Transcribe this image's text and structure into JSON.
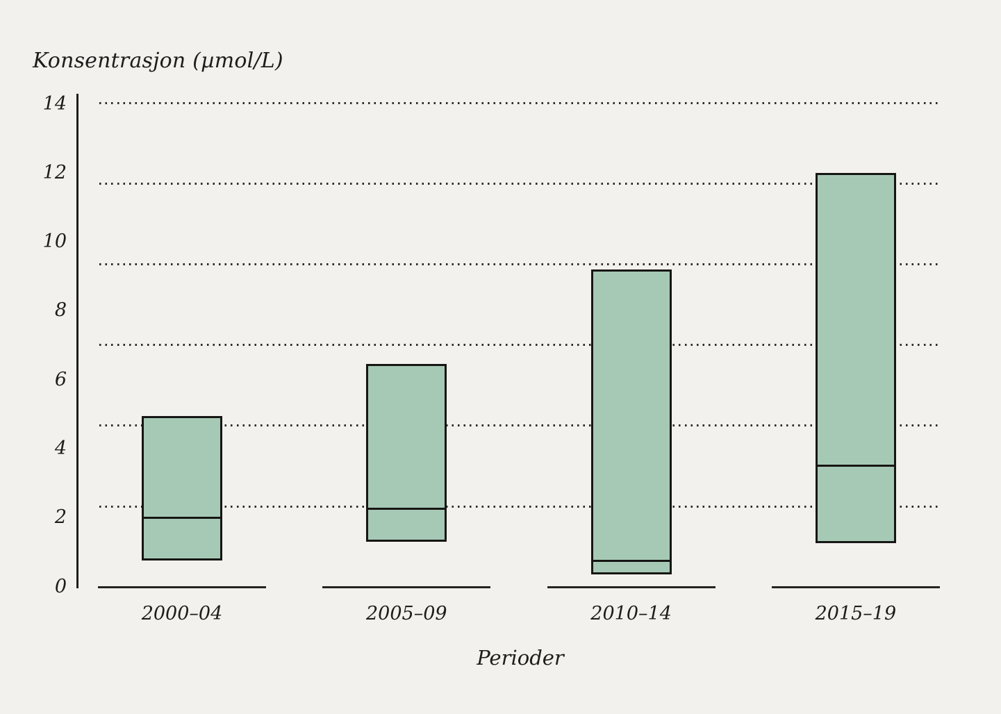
{
  "chart_data": {
    "type": "box",
    "title": "",
    "ylabel": "Konsentrasjon (µmol/L)",
    "xlabel": "Perioder",
    "categories": [
      "2000–04",
      "2005–09",
      "2010–14",
      "2015–19"
    ],
    "boxes": [
      {
        "category": "2000–04",
        "low": 0.75,
        "median": 2.0,
        "high": 4.95
      },
      {
        "category": "2005–09",
        "low": 1.3,
        "median": 2.25,
        "high": 6.45
      },
      {
        "category": "2010–14",
        "low": 0.35,
        "median": 0.75,
        "high": 9.2
      },
      {
        "category": "2015–19",
        "low": 1.25,
        "median": 3.5,
        "high": 12.0
      }
    ],
    "yticks": [
      0,
      2,
      4,
      6,
      8,
      10,
      12,
      14
    ],
    "ylim": [
      0,
      14
    ],
    "grid": {
      "style": "dotted",
      "lines": 6,
      "legend": "none"
    },
    "colors": {
      "background": "#f2f1ee",
      "box_fill": "#a6c9b5",
      "line": "#1d1d1b"
    }
  }
}
